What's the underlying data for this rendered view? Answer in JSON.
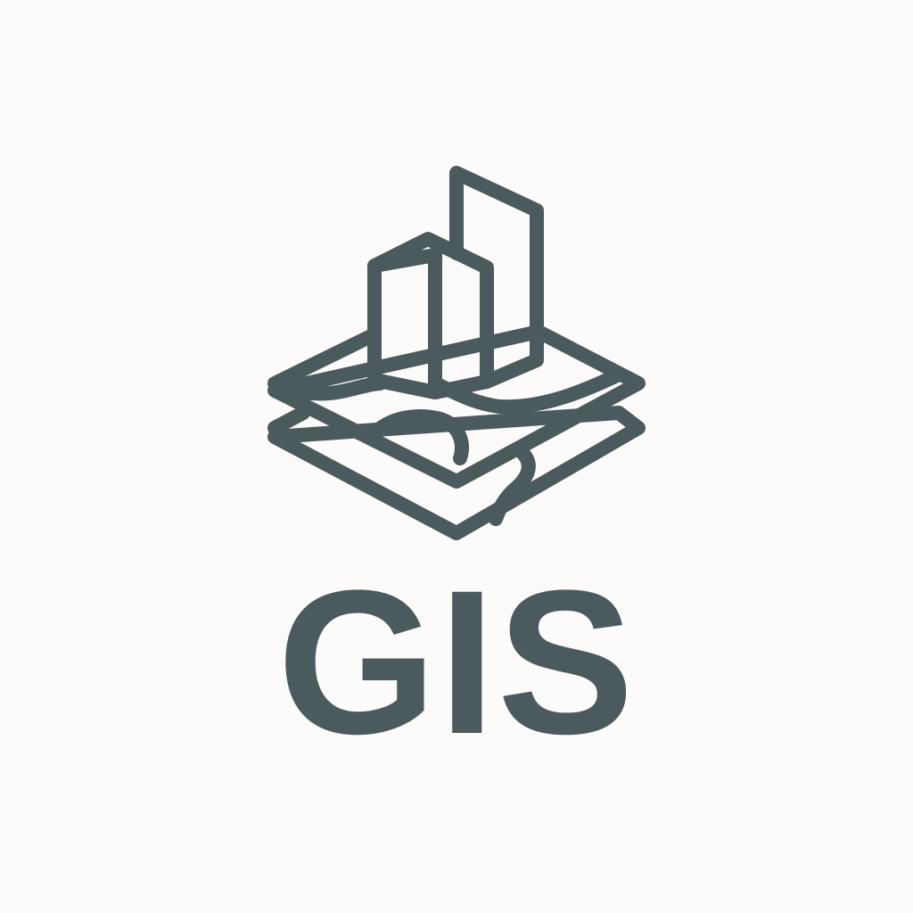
{
  "logo": {
    "wordmark": "GIS",
    "icon_name": "map-layers-buildings-icon",
    "color": "#4b5a5d",
    "background": "#fcfbf9"
  }
}
